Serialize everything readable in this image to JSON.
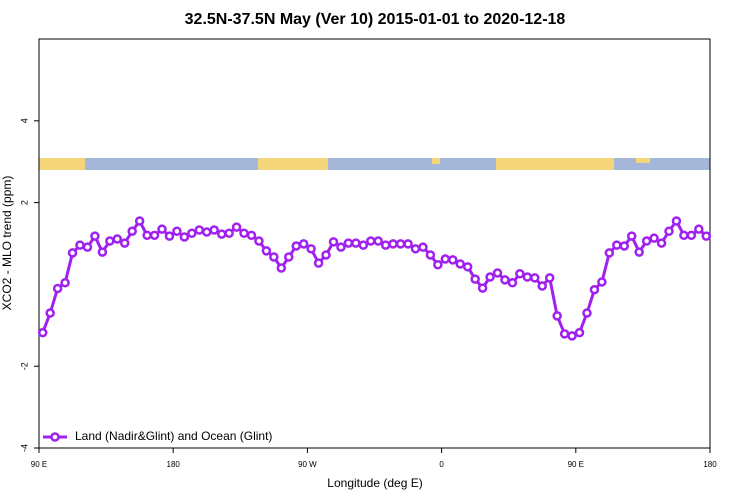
{
  "chart_data": {
    "type": "line",
    "title": "32.5N-37.5N May (Ver 10)   2015-01-01 to 2020-12-18",
    "x_label": "Longitude (deg E)",
    "y_label": "XCO2 - MLO trend (ppm)",
    "x": [
      92.5,
      97.5,
      102.5,
      107.5,
      112.5,
      117.5,
      122.5,
      127.5,
      132.5,
      137.5,
      142.5,
      147.5,
      152.5,
      157.5,
      162.5,
      167.5,
      172.5,
      177.5,
      182.5,
      187.5,
      192.5,
      197.5,
      202.5,
      207.5,
      212.5,
      217.5,
      222.5,
      227.5,
      232.5,
      237.5,
      242.5,
      247.5,
      252.5,
      257.5,
      262.5,
      267.5,
      272.5,
      277.5,
      282.5,
      287.5,
      292.5,
      297.5,
      302.5,
      307.5,
      312.5,
      317.5,
      322.5,
      327.5,
      332.5,
      337.5,
      342.5,
      347.5,
      352.5,
      357.5,
      362.5,
      367.5,
      372.5,
      377.5,
      382.5,
      387.5,
      392.5,
      397.5,
      402.5,
      407.5,
      412.5,
      417.5,
      422.5,
      427.5,
      432.5,
      437.5,
      442.5,
      447.5,
      452.5,
      457.5,
      462.5,
      467.5,
      472.5,
      477.5,
      482.5,
      487.5,
      492.5,
      497.5,
      502.5,
      507.5,
      512.5,
      517.5,
      522.5,
      527.5,
      532.5,
      537.5
    ],
    "series": [
      {
        "name": "Land (Nadir&Glint) and Ocean (Glint)",
        "color": "#a020f0",
        "values": [
          -1.18,
          -0.7,
          -0.1,
          0.04,
          0.77,
          0.96,
          0.91,
          1.18,
          0.79,
          1.06,
          1.11,
          1.01,
          1.3,
          1.55,
          1.2,
          1.2,
          1.35,
          1.18,
          1.3,
          1.16,
          1.25,
          1.33,
          1.28,
          1.33,
          1.23,
          1.25,
          1.4,
          1.25,
          1.2,
          1.06,
          0.82,
          0.67,
          0.4,
          0.67,
          0.94,
          0.99,
          0.87,
          0.52,
          0.72,
          1.04,
          0.91,
          1.01,
          1.01,
          0.96,
          1.06,
          1.06,
          0.96,
          0.99,
          0.99,
          0.99,
          0.87,
          0.91,
          0.72,
          0.48,
          0.62,
          0.6,
          0.5,
          0.43,
          0.13,
          -0.09,
          0.18,
          0.28,
          0.11,
          0.04,
          0.26,
          0.18,
          0.16,
          -0.04,
          0.16,
          -0.77,
          -1.21,
          -1.26,
          -1.18,
          -0.7,
          -0.13,
          0.06,
          0.77,
          0.96,
          0.94,
          1.18,
          0.79,
          1.06,
          1.13,
          1.01,
          1.3,
          1.55,
          1.2,
          1.2,
          1.35,
          1.18
        ]
      }
    ],
    "xlim": [
      90,
      540
    ],
    "xticks": [
      {
        "value": 90,
        "label": "90 E"
      },
      180,
      {
        "value": 270,
        "label": "90 W"
      },
      {
        "value": 360,
        "label": "0"
      },
      {
        "value": 450,
        "label": "90 E"
      },
      {
        "value": 540,
        "label": "180"
      }
    ],
    "ylim": [
      -4,
      6
    ],
    "yticks": [
      -4,
      -2,
      2,
      4
    ],
    "legend_position": "bottom-left"
  }
}
